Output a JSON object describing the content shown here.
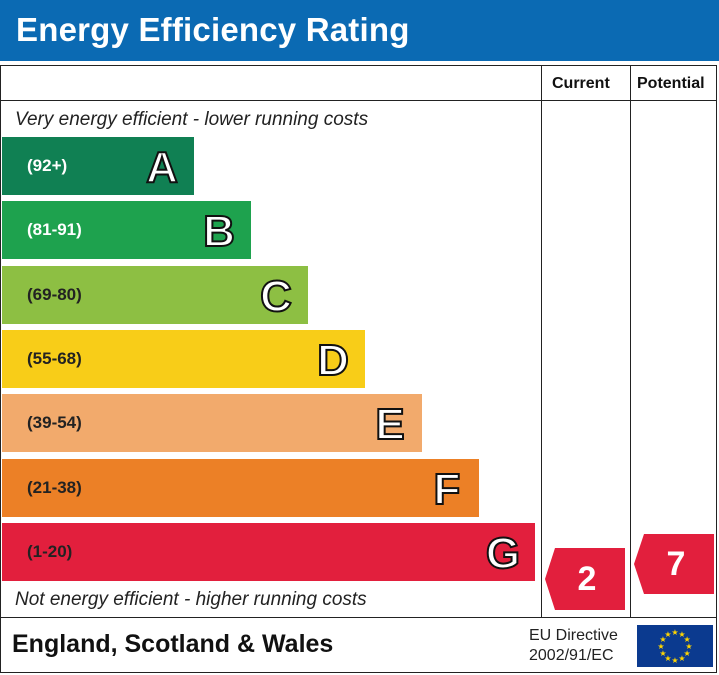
{
  "header": {
    "title": "Energy Efficiency Rating"
  },
  "columns": {
    "current": "Current",
    "potential": "Potential"
  },
  "notes": {
    "top": "Very energy efficient - lower running costs",
    "bottom": "Not energy efficient - higher running costs"
  },
  "bands": [
    {
      "letter": "A",
      "range": "(92+)",
      "color": "#108053",
      "range_color": "#ffffff"
    },
    {
      "letter": "B",
      "range": "(81-91)",
      "color": "#1ea24e",
      "range_color": "#ffffff"
    },
    {
      "letter": "C",
      "range": "(69-80)",
      "color": "#8dbf43",
      "range_color": "#222222"
    },
    {
      "letter": "D",
      "range": "(55-68)",
      "color": "#f8cd18",
      "range_color": "#222222"
    },
    {
      "letter": "E",
      "range": "(39-54)",
      "color": "#f2aa6c",
      "range_color": "#222222"
    },
    {
      "letter": "F",
      "range": "(21-38)",
      "color": "#ec8026",
      "range_color": "#222222"
    },
    {
      "letter": "G",
      "range": "(1-20)",
      "color": "#e21f3d",
      "range_color": "#222222"
    }
  ],
  "ratings": {
    "current": {
      "value": "2",
      "band": "G",
      "color": "#e21f3d"
    },
    "potential": {
      "value": "7",
      "band": "G",
      "color": "#e21f3d"
    }
  },
  "footer": {
    "region": "England, Scotland & Wales",
    "directive_line1": "EU Directive",
    "directive_line2": "2002/91/EC",
    "flag_icon": "eu-flag-icon"
  }
}
